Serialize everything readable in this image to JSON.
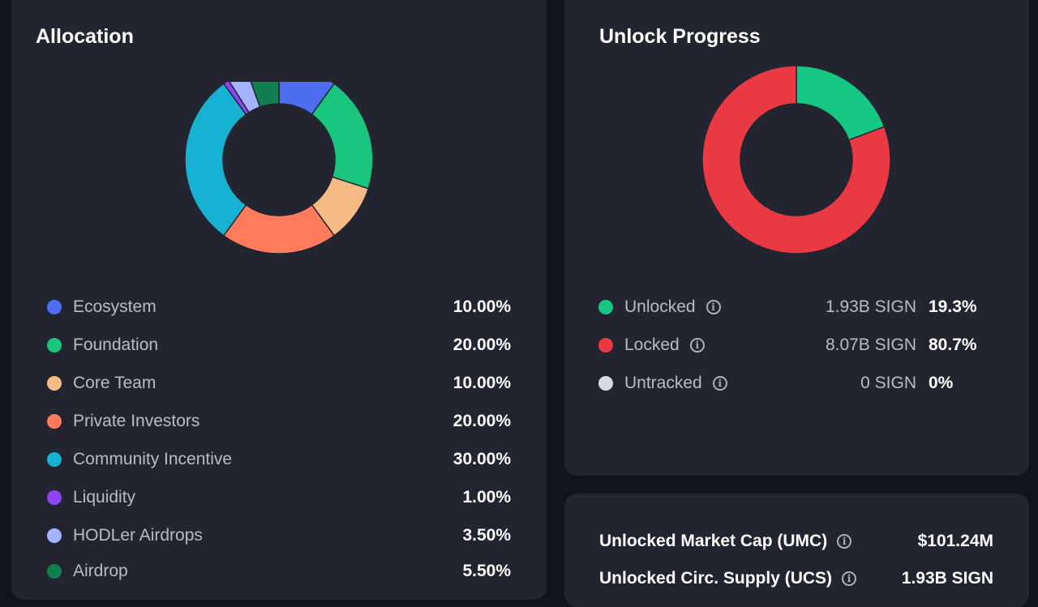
{
  "allocation": {
    "title": "Allocation",
    "chart_data": {
      "type": "pie",
      "categories": [
        "Ecosystem",
        "Foundation",
        "Core Team",
        "Private Investors",
        "Community Incentive",
        "Liquidity",
        "HODLer Airdrops",
        "Airdrop"
      ],
      "values": [
        10.0,
        20.0,
        10.0,
        20.0,
        30.0,
        1.0,
        3.5,
        5.5
      ],
      "colors": [
        "#4e6ef2",
        "#1ac57e",
        "#f5bb84",
        "#ff7b5c",
        "#17b2d1",
        "#8b45f5",
        "#a3b3ff",
        "#127f51"
      ],
      "legend": "bottom"
    },
    "items": [
      {
        "label": "Ecosystem",
        "value": "10.00%",
        "color": "#4e6ef2"
      },
      {
        "label": "Foundation",
        "value": "20.00%",
        "color": "#1ac57e"
      },
      {
        "label": "Core Team",
        "value": "10.00%",
        "color": "#f5bb84"
      },
      {
        "label": "Private Investors",
        "value": "20.00%",
        "color": "#ff7b5c"
      },
      {
        "label": "Community Incentive",
        "value": "30.00%",
        "color": "#17b2d1"
      },
      {
        "label": "Liquidity",
        "value": "1.00%",
        "color": "#8b45f5"
      },
      {
        "label": "HODLer Airdrops",
        "value": "3.50%",
        "color": "#a3b3ff"
      },
      {
        "label": "Airdrop",
        "value": "5.50%",
        "color": "#127f51"
      }
    ]
  },
  "unlock": {
    "title": "Unlock Progress",
    "chart_data": {
      "type": "pie",
      "categories": [
        "Unlocked",
        "Locked",
        "Untracked"
      ],
      "values": [
        19.3,
        80.7,
        0
      ],
      "colors": [
        "#16c784",
        "#ea3943",
        "#d5dae3"
      ],
      "legend": "bottom"
    },
    "items": [
      {
        "label": "Unlocked",
        "amount": "1.93B SIGN",
        "pct": "19.3%",
        "color": "#16c784",
        "icon": "info-icon"
      },
      {
        "label": "Locked",
        "amount": "8.07B SIGN",
        "pct": "80.7%",
        "color": "#ea3943",
        "icon": "info-icon"
      },
      {
        "label": "Untracked",
        "amount": "0 SIGN",
        "pct": "0%",
        "color": "#d5dae3",
        "icon": "info-icon"
      }
    ]
  },
  "market": {
    "rows": [
      {
        "label": "Unlocked Market Cap (UMC)",
        "value": "$101.24M",
        "icon": "info-icon"
      },
      {
        "label": "Unlocked Circ. Supply (UCS)",
        "value": "1.93B SIGN",
        "icon": "info-icon"
      }
    ]
  }
}
